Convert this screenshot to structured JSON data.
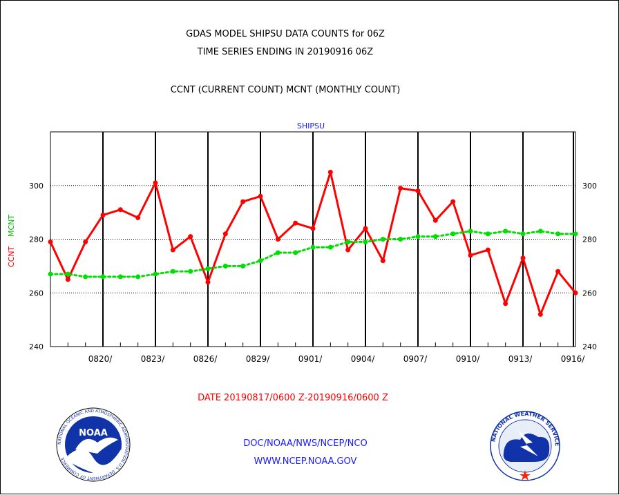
{
  "chart_data": {
    "type": "line",
    "title_lines": [
      "GDAS MODEL SHIPSU DATA COUNTS for 06Z",
      "TIME SERIES ENDING IN 20190916 06Z",
      "CCNT (CURRENT COUNT) MCNT (MONTHLY COUNT)"
    ],
    "panel_title": "SHIPSU",
    "ylabel_ccnt": "CCNT",
    "ylabel_mcnt": "MCNT",
    "xlabel": "DATE 20190817/0600 Z-20190916/0600 Z",
    "ylim": [
      240,
      320
    ],
    "yticks": [
      240,
      260,
      280,
      300
    ],
    "x_start_day": 0,
    "x_end_day": 30,
    "xtick_labels": [
      {
        "day": 3,
        "label": "0820/"
      },
      {
        "day": 6,
        "label": "0823/"
      },
      {
        "day": 9,
        "label": "0826/"
      },
      {
        "day": 12,
        "label": "0829/"
      },
      {
        "day": 15,
        "label": "0901/"
      },
      {
        "day": 18,
        "label": "0904/"
      },
      {
        "day": 21,
        "label": "0907/"
      },
      {
        "day": 24,
        "label": "0910/"
      },
      {
        "day": 27,
        "label": "0913/"
      },
      {
        "day": 30,
        "label": "0916/"
      }
    ],
    "grid": true,
    "series": [
      {
        "name": "CCNT",
        "color": "#ff0000",
        "style": "solid",
        "x": [
          0,
          1,
          2,
          3,
          4,
          5,
          6,
          7,
          8,
          9,
          10,
          11,
          12,
          13,
          14,
          15,
          16,
          17,
          18,
          19,
          20,
          21,
          22,
          23,
          24,
          25,
          26,
          27,
          28,
          29,
          30
        ],
        "values": [
          279,
          265,
          279,
          289,
          291,
          288,
          301,
          276,
          281,
          264,
          282,
          294,
          296,
          280,
          286,
          284,
          305,
          276,
          284,
          272,
          299,
          298,
          287,
          294,
          274,
          276,
          256,
          273,
          252,
          268,
          260
        ]
      },
      {
        "name": "MCNT",
        "color": "#00dd00",
        "style": "dotted",
        "x": [
          0,
          1,
          2,
          3,
          4,
          5,
          6,
          7,
          8,
          9,
          10,
          11,
          12,
          13,
          14,
          15,
          16,
          17,
          18,
          19,
          20,
          21,
          22,
          23,
          24,
          25,
          26,
          27,
          28,
          29,
          30
        ],
        "values": [
          267,
          267,
          266,
          266,
          266,
          266,
          267,
          268,
          268,
          269,
          270,
          270,
          272,
          275,
          275,
          277,
          277,
          279,
          279,
          280,
          280,
          281,
          281,
          282,
          283,
          282,
          283,
          282,
          283,
          282,
          282
        ]
      }
    ]
  },
  "footer": {
    "org_line": "DOC/NOAA/NWS/NCEP/NCO",
    "url_line": "WWW.NCEP.NOAA.GOV"
  },
  "logos": {
    "noaa_logo_text": "NOAA",
    "noaa_ring_text": "NATIONAL OCEANIC AND ATMOSPHERIC ADMINISTRATION U.S. DEPARTMENT OF COMMERCE",
    "nws_ring_text": "NATIONAL WEATHER SERVICE"
  }
}
